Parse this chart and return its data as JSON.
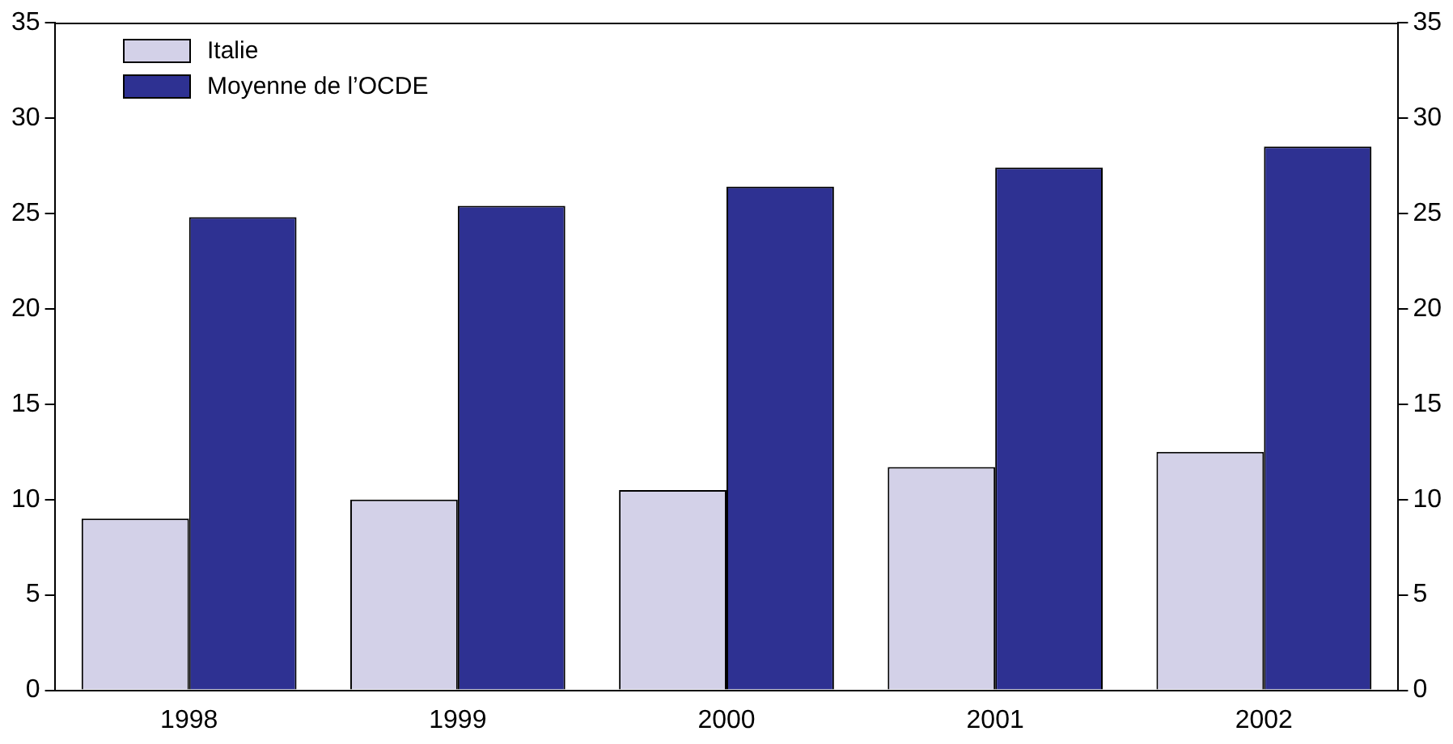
{
  "chart_data": {
    "type": "bar",
    "categories": [
      "1998",
      "1999",
      "2000",
      "2001",
      "2002"
    ],
    "series": [
      {
        "name": "Italie",
        "color": "#d3d1e8",
        "values": [
          9.0,
          10.0,
          10.5,
          11.7,
          12.5
        ]
      },
      {
        "name": "Moyenne de l’OCDE",
        "color": "#2e3192",
        "values": [
          24.8,
          25.4,
          26.4,
          27.4,
          28.5
        ]
      }
    ],
    "ylim": [
      0,
      35
    ],
    "yticks": [
      0,
      5,
      10,
      15,
      20,
      25,
      30,
      35
    ],
    "y2lim": [
      0,
      35
    ],
    "y2ticks": [
      0,
      5,
      10,
      15,
      20,
      25,
      30,
      35
    ],
    "grid": false,
    "legend": "top left"
  }
}
